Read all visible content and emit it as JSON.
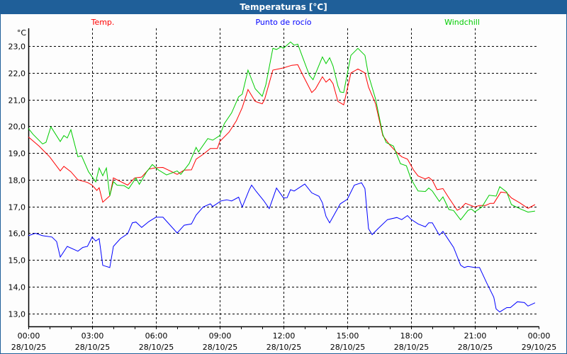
{
  "window": {
    "title": "Temperaturas [°C]"
  },
  "chart_data": {
    "type": "line",
    "title": "Temperaturas [°C]",
    "ylabel": "°C",
    "xlabel": "",
    "xlim_hours": [
      0,
      24
    ],
    "ylim": [
      12.52,
      23.66
    ],
    "grid": true,
    "legend_position": "top",
    "y_ticks": [
      "13,0",
      "14,0",
      "15,0",
      "16,0",
      "17,0",
      "18,0",
      "19,0",
      "20,0",
      "21,0",
      "22,0",
      "23,0"
    ],
    "y_tick_values": [
      13,
      14,
      15,
      16,
      17,
      18,
      19,
      20,
      21,
      22,
      23
    ],
    "x_ticks": [
      {
        "time": "00:00",
        "date": "28/10/25",
        "hour": 0
      },
      {
        "time": "03:00",
        "date": "28/10/25",
        "hour": 3
      },
      {
        "time": "06:00",
        "date": "28/10/25",
        "hour": 6
      },
      {
        "time": "09:00",
        "date": "28/10/25",
        "hour": 9
      },
      {
        "time": "12:00",
        "date": "28/10/25",
        "hour": 12
      },
      {
        "time": "15:00",
        "date": "28/10/25",
        "hour": 15
      },
      {
        "time": "18:00",
        "date": "28/10/25",
        "hour": 18
      },
      {
        "time": "21:00",
        "date": "28/10/25",
        "hour": 21
      },
      {
        "time": "00:00",
        "date": "29/10/25",
        "hour": 24
      }
    ],
    "series": [
      {
        "name": "Temp.",
        "color": "#ff0000",
        "points": [
          [
            0,
            19.6
          ],
          [
            0.5,
            19.26
          ],
          [
            1,
            18.86
          ],
          [
            1.5,
            18.33
          ],
          [
            1.67,
            18.5
          ],
          [
            2,
            18.3
          ],
          [
            2.33,
            18.0
          ],
          [
            2.78,
            17.9
          ],
          [
            3,
            17.8
          ],
          [
            3.22,
            17.6
          ],
          [
            3.33,
            17.7
          ],
          [
            3.5,
            17.16
          ],
          [
            3.83,
            17.4
          ],
          [
            4,
            18.07
          ],
          [
            4.67,
            17.8
          ],
          [
            5,
            18.07
          ],
          [
            5.33,
            18.1
          ],
          [
            5.67,
            18.4
          ],
          [
            6,
            18.45
          ],
          [
            6.33,
            18.46
          ],
          [
            6.67,
            18.33
          ],
          [
            7,
            18.2
          ],
          [
            7.33,
            18.36
          ],
          [
            7.67,
            18.37
          ],
          [
            7.89,
            18.77
          ],
          [
            8.22,
            18.95
          ],
          [
            8.56,
            19.17
          ],
          [
            8.89,
            19.17
          ],
          [
            9,
            19.43
          ],
          [
            9.44,
            19.78
          ],
          [
            9.78,
            20.2
          ],
          [
            10.06,
            20.7
          ],
          [
            10.33,
            21.37
          ],
          [
            10.67,
            20.93
          ],
          [
            11,
            20.84
          ],
          [
            11.11,
            21.0
          ],
          [
            11.5,
            22.1
          ],
          [
            12,
            22.18
          ],
          [
            12.39,
            22.28
          ],
          [
            12.67,
            22.3
          ],
          [
            12.89,
            21.94
          ],
          [
            13.33,
            21.26
          ],
          [
            13.5,
            21.39
          ],
          [
            13.83,
            21.85
          ],
          [
            14,
            21.65
          ],
          [
            14.17,
            21.77
          ],
          [
            14.33,
            21.59
          ],
          [
            14.56,
            20.93
          ],
          [
            14.83,
            20.8
          ],
          [
            15.17,
            21.99
          ],
          [
            15.5,
            22.14
          ],
          [
            15.83,
            21.99
          ],
          [
            16,
            21.46
          ],
          [
            16.33,
            20.84
          ],
          [
            16.67,
            19.65
          ],
          [
            17,
            19.3
          ],
          [
            17.33,
            19.02
          ],
          [
            17.56,
            18.86
          ],
          [
            17.83,
            18.77
          ],
          [
            18.11,
            18.37
          ],
          [
            18.33,
            18.14
          ],
          [
            18.67,
            18.03
          ],
          [
            18.83,
            18.09
          ],
          [
            19,
            17.98
          ],
          [
            19.22,
            17.63
          ],
          [
            19.5,
            17.67
          ],
          [
            19.78,
            17.32
          ],
          [
            20.17,
            16.86
          ],
          [
            20.33,
            16.93
          ],
          [
            20.56,
            17.12
          ],
          [
            21,
            16.98
          ],
          [
            21.22,
            17.04
          ],
          [
            21.5,
            17.04
          ],
          [
            21.72,
            17.12
          ],
          [
            21.89,
            17.12
          ],
          [
            22.22,
            17.54
          ],
          [
            22.5,
            17.51
          ],
          [
            22.72,
            17.32
          ],
          [
            23.11,
            17.14
          ],
          [
            23.5,
            16.93
          ],
          [
            23.83,
            17.07
          ]
        ]
      },
      {
        "name": "Punto de rocío",
        "color": "#0000ff",
        "points": [
          [
            0,
            15.91
          ],
          [
            0.33,
            16.0
          ],
          [
            0.67,
            15.91
          ],
          [
            1.11,
            15.86
          ],
          [
            1.33,
            15.69
          ],
          [
            1.5,
            15.11
          ],
          [
            1.83,
            15.51
          ],
          [
            2.33,
            15.33
          ],
          [
            2.56,
            15.47
          ],
          [
            2.78,
            15.51
          ],
          [
            3,
            15.86
          ],
          [
            3.17,
            15.71
          ],
          [
            3.33,
            15.8
          ],
          [
            3.5,
            14.8
          ],
          [
            3.83,
            14.72
          ],
          [
            4,
            15.51
          ],
          [
            4.33,
            15.8
          ],
          [
            4.67,
            15.98
          ],
          [
            4.89,
            16.39
          ],
          [
            5.06,
            16.42
          ],
          [
            5.33,
            16.22
          ],
          [
            5.67,
            16.44
          ],
          [
            6,
            16.6
          ],
          [
            6.33,
            16.6
          ],
          [
            7,
            16.01
          ],
          [
            7.33,
            16.3
          ],
          [
            7.67,
            16.35
          ],
          [
            7.89,
            16.68
          ],
          [
            8.22,
            16.98
          ],
          [
            8.56,
            17.1
          ],
          [
            8.67,
            17.0
          ],
          [
            9.06,
            17.21
          ],
          [
            9.33,
            17.25
          ],
          [
            9.56,
            17.21
          ],
          [
            9.89,
            17.35
          ],
          [
            10.06,
            16.98
          ],
          [
            10.39,
            17.63
          ],
          [
            10.5,
            17.8
          ],
          [
            10.72,
            17.56
          ],
          [
            11.06,
            17.23
          ],
          [
            11.33,
            16.92
          ],
          [
            11.67,
            17.69
          ],
          [
            12,
            17.32
          ],
          [
            12.17,
            17.33
          ],
          [
            12.33,
            17.63
          ],
          [
            12.5,
            17.58
          ],
          [
            13,
            17.84
          ],
          [
            13.33,
            17.51
          ],
          [
            13.67,
            17.38
          ],
          [
            13.83,
            17.14
          ],
          [
            14,
            16.63
          ],
          [
            14.17,
            16.39
          ],
          [
            14.67,
            17.1
          ],
          [
            15,
            17.27
          ],
          [
            15.33,
            17.8
          ],
          [
            15.67,
            17.89
          ],
          [
            15.83,
            17.67
          ],
          [
            16,
            16.17
          ],
          [
            16.17,
            15.95
          ],
          [
            16.44,
            16.17
          ],
          [
            16.89,
            16.51
          ],
          [
            17.33,
            16.59
          ],
          [
            17.56,
            16.51
          ],
          [
            17.83,
            16.66
          ],
          [
            18,
            16.52
          ],
          [
            18.33,
            16.35
          ],
          [
            18.67,
            16.24
          ],
          [
            18.83,
            16.39
          ],
          [
            19,
            16.39
          ],
          [
            19.33,
            15.93
          ],
          [
            19.5,
            16.07
          ],
          [
            20,
            15.47
          ],
          [
            20.33,
            14.81
          ],
          [
            20.5,
            14.72
          ],
          [
            20.67,
            14.76
          ],
          [
            21,
            14.72
          ],
          [
            21.22,
            14.72
          ],
          [
            21.56,
            14.14
          ],
          [
            21.89,
            13.61
          ],
          [
            22,
            13.17
          ],
          [
            22.17,
            13.06
          ],
          [
            22.5,
            13.22
          ],
          [
            22.67,
            13.22
          ],
          [
            23,
            13.44
          ],
          [
            23.33,
            13.41
          ],
          [
            23.5,
            13.28
          ],
          [
            23.83,
            13.4
          ]
        ]
      },
      {
        "name": "Windchill",
        "color": "#00cc00",
        "points": [
          [
            0,
            19.92
          ],
          [
            0.22,
            19.7
          ],
          [
            0.67,
            19.34
          ],
          [
            0.83,
            19.4
          ],
          [
            1.06,
            19.98
          ],
          [
            1.5,
            19.43
          ],
          [
            1.67,
            19.65
          ],
          [
            1.83,
            19.56
          ],
          [
            2,
            19.87
          ],
          [
            2.33,
            18.86
          ],
          [
            2.5,
            18.9
          ],
          [
            2.83,
            18.3
          ],
          [
            3.17,
            17.92
          ],
          [
            3.33,
            18.44
          ],
          [
            3.5,
            18.15
          ],
          [
            3.67,
            18.44
          ],
          [
            3.83,
            17.4
          ],
          [
            4,
            17.93
          ],
          [
            4.17,
            17.8
          ],
          [
            4.5,
            17.78
          ],
          [
            4.72,
            17.67
          ],
          [
            5.06,
            18.07
          ],
          [
            5.22,
            17.83
          ],
          [
            5.56,
            18.29
          ],
          [
            5.83,
            18.57
          ],
          [
            6.11,
            18.37
          ],
          [
            6.5,
            18.18
          ],
          [
            7,
            18.33
          ],
          [
            7.17,
            18.2
          ],
          [
            7.56,
            18.6
          ],
          [
            7.89,
            19.21
          ],
          [
            8,
            19.04
          ],
          [
            8.44,
            19.54
          ],
          [
            8.67,
            19.48
          ],
          [
            9,
            19.65
          ],
          [
            9.22,
            20.1
          ],
          [
            9.56,
            20.5
          ],
          [
            9.89,
            21.1
          ],
          [
            10.06,
            21.2
          ],
          [
            10.33,
            22.1
          ],
          [
            10.67,
            21.4
          ],
          [
            11,
            21.12
          ],
          [
            11.17,
            21.55
          ],
          [
            11.5,
            22.91
          ],
          [
            11.67,
            22.87
          ],
          [
            11.89,
            22.97
          ],
          [
            12,
            22.91
          ],
          [
            12.33,
            23.15
          ],
          [
            12.5,
            23.03
          ],
          [
            12.67,
            23.07
          ],
          [
            12.89,
            22.6
          ],
          [
            13.22,
            21.9
          ],
          [
            13.39,
            21.74
          ],
          [
            13.83,
            22.59
          ],
          [
            14,
            22.34
          ],
          [
            14.17,
            22.56
          ],
          [
            14.33,
            22.25
          ],
          [
            14.56,
            21.5
          ],
          [
            14.67,
            21.28
          ],
          [
            14.83,
            21.26
          ],
          [
            15.17,
            22.65
          ],
          [
            15.5,
            22.91
          ],
          [
            15.83,
            22.65
          ],
          [
            16,
            21.9
          ],
          [
            16.33,
            21.02
          ],
          [
            16.67,
            19.7
          ],
          [
            16.83,
            19.39
          ],
          [
            17.17,
            19.26
          ],
          [
            17.5,
            18.6
          ],
          [
            17.78,
            18.52
          ],
          [
            18,
            18.02
          ],
          [
            18.33,
            17.58
          ],
          [
            18.67,
            17.56
          ],
          [
            18.83,
            17.69
          ],
          [
            19,
            17.58
          ],
          [
            19.33,
            17.19
          ],
          [
            19.5,
            17.36
          ],
          [
            19.78,
            16.89
          ],
          [
            20,
            16.85
          ],
          [
            20.33,
            16.5
          ],
          [
            20.67,
            16.85
          ],
          [
            20.83,
            16.91
          ],
          [
            21,
            16.8
          ],
          [
            21.33,
            16.98
          ],
          [
            21.67,
            17.42
          ],
          [
            22,
            17.39
          ],
          [
            22.17,
            17.74
          ],
          [
            22.5,
            17.54
          ],
          [
            22.72,
            17.07
          ],
          [
            23.11,
            16.92
          ],
          [
            23.5,
            16.79
          ],
          [
            23.83,
            16.83
          ]
        ]
      }
    ]
  }
}
